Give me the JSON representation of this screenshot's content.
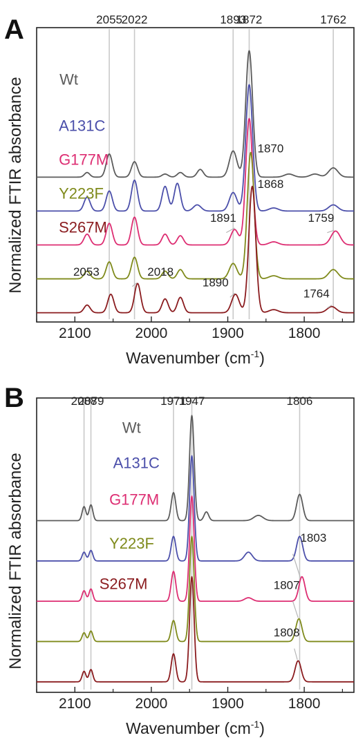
{
  "figure": {
    "ylabel_A": "Normalized FTIR absorbance",
    "ylabel_B": "Normalized FTIR absorbance"
  },
  "chart_data": [
    {
      "panel": "A",
      "type": "line",
      "xlabel_main": "Wavenumber (cm",
      "xlabel_sup": "-1",
      "xlabel_close": ")",
      "xlim": [
        2150,
        1735
      ],
      "x_reversed": true,
      "xticks": [
        2100,
        2000,
        1900,
        1800
      ],
      "xtick_labels": [
        "2100",
        "2000",
        "1900",
        "1800"
      ],
      "grid": false,
      "top_labels": [
        {
          "x": 2055,
          "text": "2055"
        },
        {
          "x": 2022,
          "text": "2022"
        },
        {
          "x": 1893,
          "text": "1893"
        },
        {
          "x": 1872,
          "text": "1872"
        },
        {
          "x": 1762,
          "text": "1762"
        }
      ],
      "guide_lines": [
        2055,
        2022,
        1893,
        1872,
        1762
      ],
      "series": [
        {
          "name": "Wt",
          "color": "#5b5b5b",
          "baseline": 0.88,
          "label_x": 2120,
          "label_above": 0.6,
          "peaks": [
            [
              2084,
              0.03,
              3.5
            ],
            [
              2055,
              0.15,
              4
            ],
            [
              2022,
              0.1,
              4
            ],
            [
              1982,
              0.02,
              4
            ],
            [
              1962,
              0.03,
              4
            ],
            [
              1936,
              0.05,
              4
            ],
            [
              1893,
              0.17,
              5
            ],
            [
              1872,
              0.82,
              4.5
            ],
            [
              1820,
              0.02,
              6
            ],
            [
              1786,
              0.02,
              6
            ],
            [
              1762,
              0.06,
              6
            ]
          ]
        },
        {
          "name": "A131C",
          "color": "#4b4faa",
          "baseline": 0.66,
          "label_x": 2121,
          "label_above": 0.52,
          "peaks": [
            [
              2084,
              0.09,
              4
            ],
            [
              2055,
              0.13,
              4
            ],
            [
              2022,
              0.2,
              4
            ],
            [
              1982,
              0.16,
              4
            ],
            [
              1966,
              0.18,
              4
            ],
            [
              1940,
              0.04,
              5
            ],
            [
              1893,
              0.12,
              5
            ],
            [
              1872,
              0.82,
              4.5
            ],
            [
              1840,
              0.02,
              6
            ],
            [
              1762,
              0.04,
              6
            ]
          ]
        },
        {
          "name": "G177M",
          "color": "#dd2d72",
          "baseline": 0.44,
          "label_x": 2121,
          "label_above": 0.52,
          "peaks": [
            [
              2084,
              0.07,
              4
            ],
            [
              2055,
              0.14,
              4
            ],
            [
              2022,
              0.18,
              4
            ],
            [
              1982,
              0.07,
              4
            ],
            [
              1962,
              0.06,
              4
            ],
            [
              1891,
              0.1,
              5
            ],
            [
              1872,
              0.82,
              4.5
            ],
            [
              1840,
              0.02,
              6
            ],
            [
              1759,
              0.09,
              6
            ]
          ]
        },
        {
          "name": "Y223F",
          "color": "#7f8a1b",
          "baseline": 0.22,
          "label_x": 2121,
          "label_above": 0.52,
          "peaks": [
            [
              2084,
              0.05,
              4
            ],
            [
              2055,
              0.11,
              4
            ],
            [
              2022,
              0.14,
              4
            ],
            [
              1982,
              0.05,
              4
            ],
            [
              1962,
              0.06,
              4
            ],
            [
              1893,
              0.1,
              5
            ],
            [
              1870,
              0.82,
              4.5
            ],
            [
              1840,
              0.02,
              6
            ],
            [
              1762,
              0.06,
              6
            ]
          ]
        },
        {
          "name": "S267M",
          "color": "#8a1b1e",
          "baseline": 0.0,
          "label_x": 2121,
          "label_above": 0.52,
          "peaks": [
            [
              2084,
              0.05,
              4
            ],
            [
              2053,
              0.12,
              4
            ],
            [
              2018,
              0.19,
              4
            ],
            [
              1982,
              0.09,
              4
            ],
            [
              1962,
              0.1,
              4
            ],
            [
              1890,
              0.12,
              5
            ],
            [
              1868,
              0.82,
              4.5
            ],
            [
              1840,
              0.02,
              6
            ],
            [
              1764,
              0.04,
              6
            ]
          ]
        }
      ],
      "annotations": [
        {
          "x": 1891,
          "text": "1891",
          "series": "G177M",
          "lead_from": 1902,
          "lead_to": 1891,
          "label_x": 1906,
          "label_above": 0.15
        },
        {
          "x": 1759,
          "text": "1759",
          "series": "G177M",
          "lead_from": 1770,
          "lead_to": 1761,
          "label_x": 1778,
          "label_above": 0.15
        },
        {
          "x": 1870,
          "text": "1870",
          "series": "Y223F",
          "lead_from": 0,
          "lead_to": 0,
          "label_x": 1844,
          "label_above": 0.82
        },
        {
          "x": 2053,
          "text": "2053",
          "series": "S267M",
          "lead_from": 0,
          "lead_to": 0,
          "label_x": 2085,
          "label_above": 0.24
        },
        {
          "x": 2018,
          "text": "2018",
          "series": "S267M",
          "lead_from": 2025,
          "lead_to": 2019,
          "label_x": 1988,
          "label_above": 0.24
        },
        {
          "x": 1890,
          "text": "1890",
          "series": "S267M",
          "lead_from": 1897,
          "lead_to": 1891,
          "label_x": 1916,
          "label_above": 0.17
        },
        {
          "x": 1868,
          "text": "1868",
          "series": "S267M",
          "lead_from": 0,
          "lead_to": 0,
          "label_x": 1844,
          "label_above": 0.81
        },
        {
          "x": 1764,
          "text": "1764",
          "series": "S267M",
          "lead_from": 1770,
          "lead_to": 1764,
          "label_x": 1784,
          "label_above": 0.1
        }
      ]
    },
    {
      "panel": "B",
      "type": "line",
      "xlabel_main": "Wavenumber (cm",
      "xlabel_sup": "-1",
      "xlabel_close": ")",
      "xlim": [
        2150,
        1735
      ],
      "x_reversed": true,
      "xticks": [
        2100,
        2000,
        1900,
        1800
      ],
      "xtick_labels": [
        "2100",
        "2000",
        "1900",
        "1800"
      ],
      "grid": false,
      "top_labels": [
        {
          "x": 2088,
          "text": "2088"
        },
        {
          "x": 2079,
          "text": "2079"
        },
        {
          "x": 1971,
          "text": "1971"
        },
        {
          "x": 1947,
          "text": "1947"
        },
        {
          "x": 1806,
          "text": "1806"
        }
      ],
      "guide_lines": [
        2088,
        2079,
        1971,
        1947,
        1806
      ],
      "series": [
        {
          "name": "Wt",
          "color": "#5b5b5b",
          "baseline": 0.92,
          "label_x": 2038,
          "label_above": 0.5,
          "peaks": [
            [
              2088,
              0.08,
              2.5
            ],
            [
              2079,
              0.09,
              2.5
            ],
            [
              1971,
              0.16,
              3
            ],
            [
              1947,
              0.6,
              3
            ],
            [
              1928,
              0.05,
              3
            ],
            [
              1860,
              0.03,
              6
            ],
            [
              1806,
              0.15,
              4
            ]
          ]
        },
        {
          "name": "A131C",
          "color": "#4b4faa",
          "baseline": 0.69,
          "label_x": 2050,
          "label_above": 0.53,
          "peaks": [
            [
              2088,
              0.05,
              2.5
            ],
            [
              2079,
              0.06,
              2.5
            ],
            [
              1971,
              0.14,
              3
            ],
            [
              1947,
              0.6,
              3
            ],
            [
              1873,
              0.05,
              5
            ],
            [
              1806,
              0.14,
              4
            ]
          ]
        },
        {
          "name": "G177M",
          "color": "#dd2d72",
          "baseline": 0.46,
          "label_x": 2055,
          "label_above": 0.55,
          "peaks": [
            [
              2088,
              0.06,
              2.5
            ],
            [
              2079,
              0.07,
              2.5
            ],
            [
              1971,
              0.17,
              3
            ],
            [
              1947,
              0.6,
              3
            ],
            [
              1873,
              0.02,
              5
            ],
            [
              1803,
              0.14,
              4
            ]
          ]
        },
        {
          "name": "Y223F",
          "color": "#7f8a1b",
          "baseline": 0.23,
          "label_x": 2055,
          "label_above": 0.53,
          "peaks": [
            [
              2088,
              0.05,
              2.5
            ],
            [
              2079,
              0.06,
              2.5
            ],
            [
              1971,
              0.12,
              3
            ],
            [
              1947,
              0.6,
              3
            ],
            [
              1807,
              0.13,
              4
            ]
          ]
        },
        {
          "name": "S267M",
          "color": "#8a1b1e",
          "baseline": 0.0,
          "label_x": 2068,
          "label_above": 0.53,
          "peaks": [
            [
              2088,
              0.06,
              2.5
            ],
            [
              2079,
              0.07,
              2.5
            ],
            [
              1971,
              0.16,
              3
            ],
            [
              1947,
              0.6,
              3
            ],
            [
              1808,
              0.12,
              4
            ]
          ]
        }
      ],
      "annotations": [
        {
          "x": 1803,
          "text": "1803",
          "series": "G177M",
          "lead_from": 1815,
          "lead_to": 1805,
          "label_x": 1788,
          "label_above": 0.34
        },
        {
          "x": 1807,
          "text": "1807",
          "series": "Y223F",
          "lead_from": 1815,
          "lead_to": 1808,
          "label_x": 1823,
          "label_above": 0.3
        },
        {
          "x": 1808,
          "text": "1808",
          "series": "S267M",
          "lead_from": 1813,
          "lead_to": 1809,
          "label_x": 1823,
          "label_above": 0.26
        }
      ]
    }
  ]
}
